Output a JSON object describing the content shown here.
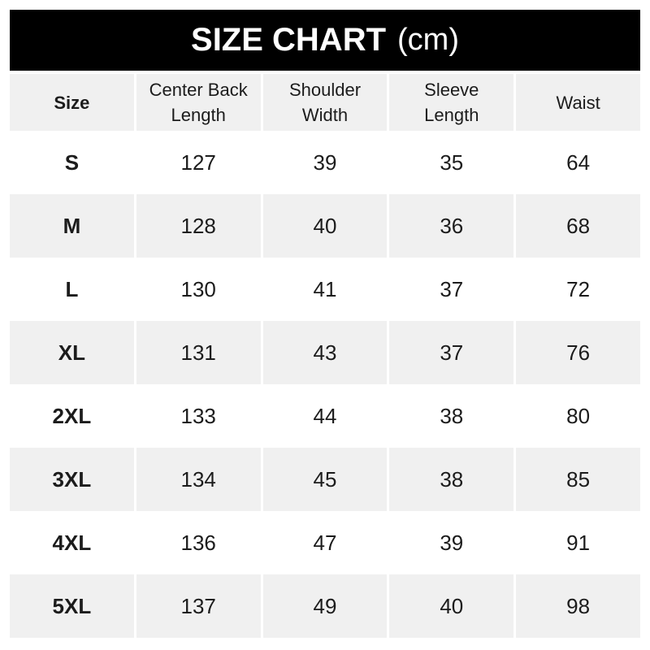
{
  "banner": {
    "title": "SIZE CHART",
    "unit": "(cm)"
  },
  "chart_data": {
    "type": "table",
    "title": "SIZE CHART (cm)",
    "unit": "cm",
    "columns": [
      "Size",
      "Center Back Length",
      "Shoulder Width",
      "Sleeve Length",
      "Waist"
    ],
    "rows": [
      [
        "S",
        127,
        39,
        35,
        64
      ],
      [
        "M",
        128,
        40,
        36,
        68
      ],
      [
        "L",
        130,
        41,
        37,
        72
      ],
      [
        "XL",
        131,
        43,
        37,
        76
      ],
      [
        "2XL",
        133,
        44,
        38,
        80
      ],
      [
        "3XL",
        134,
        45,
        38,
        85
      ],
      [
        "4XL",
        136,
        47,
        39,
        91
      ],
      [
        "5XL",
        137,
        49,
        40,
        98
      ]
    ],
    "layout": {
      "striping": "alternating rows shaded, starting with header and even rows",
      "stripe_rows": [
        "header",
        "M",
        "XL",
        "3XL",
        "5XL"
      ]
    }
  },
  "colors": {
    "banner_bg": "#000000",
    "banner_text": "#ffffff",
    "stripe_bg": "#f0f0f0",
    "text": "#1c1c1c",
    "page_bg": "#ffffff"
  }
}
